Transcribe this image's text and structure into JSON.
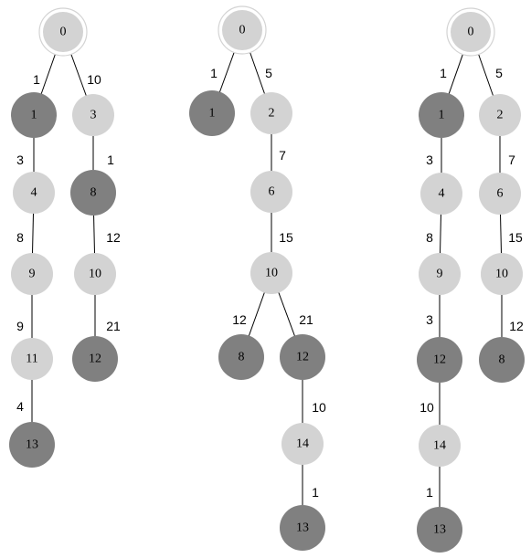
{
  "colors": {
    "light_node": "#d3d3d3",
    "dark_node": "#808080",
    "root_ring": "#d3d3d3",
    "background": "#ffffff"
  },
  "trees": [
    {
      "nodes": [
        {
          "id": "a0",
          "label": "0",
          "style": "root"
        },
        {
          "id": "a1",
          "label": "1",
          "style": "dark"
        },
        {
          "id": "a3",
          "label": "3",
          "style": "light"
        },
        {
          "id": "a4",
          "label": "4",
          "style": "light"
        },
        {
          "id": "a8",
          "label": "8",
          "style": "dark"
        },
        {
          "id": "a9",
          "label": "9",
          "style": "light"
        },
        {
          "id": "a10",
          "label": "10",
          "style": "light"
        },
        {
          "id": "a11",
          "label": "11",
          "style": "light"
        },
        {
          "id": "a12",
          "label": "12",
          "style": "dark"
        },
        {
          "id": "a13",
          "label": "13",
          "style": "dark"
        }
      ],
      "edges": [
        {
          "from": "a0",
          "to": "a1",
          "weight": "1"
        },
        {
          "from": "a0",
          "to": "a3",
          "weight": "10"
        },
        {
          "from": "a1",
          "to": "a4",
          "weight": "3"
        },
        {
          "from": "a3",
          "to": "a8",
          "weight": "1"
        },
        {
          "from": "a4",
          "to": "a9",
          "weight": "8"
        },
        {
          "from": "a8",
          "to": "a10",
          "weight": "12"
        },
        {
          "from": "a9",
          "to": "a11",
          "weight": "9"
        },
        {
          "from": "a10",
          "to": "a12",
          "weight": "21"
        },
        {
          "from": "a11",
          "to": "a13",
          "weight": "4"
        }
      ]
    },
    {
      "nodes": [
        {
          "id": "b0",
          "label": "0",
          "style": "root"
        },
        {
          "id": "b1",
          "label": "1",
          "style": "dark"
        },
        {
          "id": "b2",
          "label": "2",
          "style": "light"
        },
        {
          "id": "b6",
          "label": "6",
          "style": "light"
        },
        {
          "id": "b10",
          "label": "10",
          "style": "light"
        },
        {
          "id": "b8",
          "label": "8",
          "style": "dark"
        },
        {
          "id": "b12",
          "label": "12",
          "style": "dark"
        },
        {
          "id": "b14",
          "label": "14",
          "style": "light"
        },
        {
          "id": "b13",
          "label": "13",
          "style": "dark"
        }
      ],
      "edges": [
        {
          "from": "b0",
          "to": "b1",
          "weight": "1"
        },
        {
          "from": "b0",
          "to": "b2",
          "weight": "5"
        },
        {
          "from": "b2",
          "to": "b6",
          "weight": "7"
        },
        {
          "from": "b6",
          "to": "b10",
          "weight": "15"
        },
        {
          "from": "b10",
          "to": "b8",
          "weight": "12"
        },
        {
          "from": "b10",
          "to": "b12",
          "weight": "21"
        },
        {
          "from": "b12",
          "to": "b14",
          "weight": "10"
        },
        {
          "from": "b14",
          "to": "b13",
          "weight": "1"
        }
      ]
    },
    {
      "nodes": [
        {
          "id": "c0",
          "label": "0",
          "style": "root"
        },
        {
          "id": "c1",
          "label": "1",
          "style": "dark"
        },
        {
          "id": "c2",
          "label": "2",
          "style": "light"
        },
        {
          "id": "c4",
          "label": "4",
          "style": "light"
        },
        {
          "id": "c6",
          "label": "6",
          "style": "light"
        },
        {
          "id": "c9",
          "label": "9",
          "style": "light"
        },
        {
          "id": "c10",
          "label": "10",
          "style": "light"
        },
        {
          "id": "c12",
          "label": "12",
          "style": "dark"
        },
        {
          "id": "c8",
          "label": "8",
          "style": "dark"
        },
        {
          "id": "c14",
          "label": "14",
          "style": "light"
        },
        {
          "id": "c13",
          "label": "13",
          "style": "dark"
        }
      ],
      "edges": [
        {
          "from": "c0",
          "to": "c1",
          "weight": "1"
        },
        {
          "from": "c0",
          "to": "c2",
          "weight": "5"
        },
        {
          "from": "c1",
          "to": "c4",
          "weight": "3"
        },
        {
          "from": "c2",
          "to": "c6",
          "weight": "7"
        },
        {
          "from": "c4",
          "to": "c9",
          "weight": "8"
        },
        {
          "from": "c6",
          "to": "c10",
          "weight": "15"
        },
        {
          "from": "c9",
          "to": "c12",
          "weight": "3"
        },
        {
          "from": "c10",
          "to": "c8",
          "weight": "12"
        },
        {
          "from": "c12",
          "to": "c14",
          "weight": "10"
        },
        {
          "from": "c14",
          "to": "c13",
          "weight": "1"
        }
      ]
    }
  ]
}
